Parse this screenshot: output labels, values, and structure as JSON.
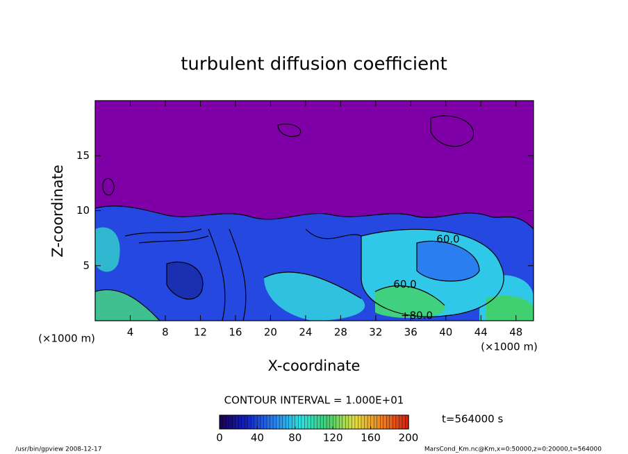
{
  "chart_data": {
    "type": "contour",
    "title": "turbulent diffusion coefficient",
    "xlabel": "X-coordinate",
    "ylabel": "Z-coordinate",
    "x_unit_label": "(×1000 m)",
    "xlim": [
      0,
      50
    ],
    "xticks": [
      4,
      8,
      12,
      16,
      20,
      24,
      28,
      32,
      36,
      40,
      44,
      48
    ],
    "ylim": [
      0,
      20
    ],
    "yticks": [
      5,
      10,
      15
    ],
    "contour_labels": [
      "60.0",
      "60.0",
      "+80.0"
    ],
    "contour_interval_label": "CONTOUR INTERVAL = 1.000E+01",
    "colorbar_lim": [
      0,
      200
    ],
    "colorbar_ticks": [
      0,
      40,
      80,
      120,
      160,
      200
    ],
    "colormap": [
      "#1a0050",
      "#1020c0",
      "#2a7ef0",
      "#30e0e0",
      "#40d070",
      "#e0e040",
      "#f08020",
      "#d02010"
    ],
    "time_label": "t=564000 s",
    "footer_left": "/usr/bin/gpview   2008-12-17",
    "footer_right": "MarsCond_Km.nc@Km,x=0:50000,z=0:20000,t=564000"
  }
}
